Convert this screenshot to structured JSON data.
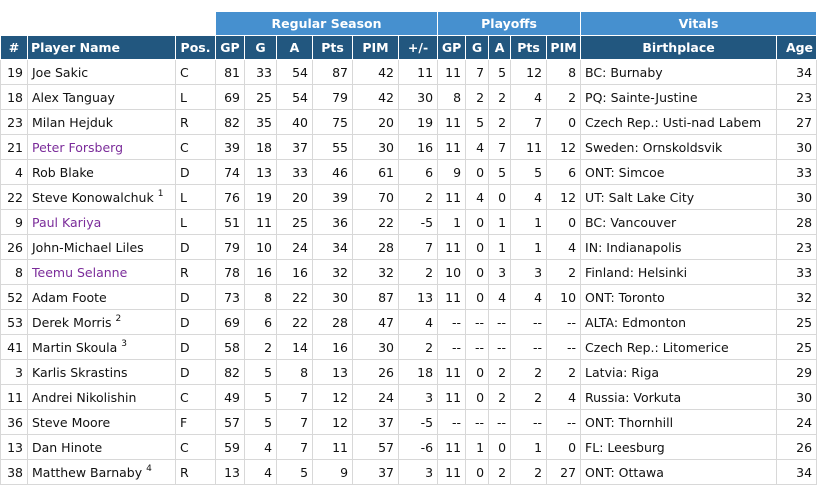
{
  "table": {
    "groups": [
      "Regular Season",
      "Playoffs",
      "Vitals"
    ],
    "columns": [
      "#",
      "Player Name",
      "Pos.",
      "GP",
      "G",
      "A",
      "Pts",
      "PIM",
      "+/-",
      "GP",
      "G",
      "A",
      "Pts",
      "PIM",
      "Birthplace",
      "Age"
    ],
    "link_color": "#7b2c9a",
    "rows": [
      {
        "cells": [
          19,
          "Joe Sakic",
          "C",
          81,
          33,
          54,
          87,
          42,
          11,
          11,
          7,
          5,
          12,
          8,
          "BC: Burnaby",
          34
        ]
      },
      {
        "cells": [
          18,
          "Alex Tanguay",
          "L",
          69,
          25,
          54,
          79,
          42,
          30,
          8,
          2,
          2,
          4,
          2,
          "PQ: Sainte-Justine",
          23
        ]
      },
      {
        "cells": [
          23,
          "Milan Hejduk",
          "R",
          82,
          35,
          40,
          75,
          20,
          19,
          11,
          5,
          2,
          7,
          0,
          "Czech Rep.: Usti-nad Labem",
          27
        ]
      },
      {
        "cells": [
          21,
          "Peter Forsberg",
          "C",
          39,
          18,
          37,
          55,
          30,
          16,
          11,
          4,
          7,
          11,
          12,
          "Sweden: Ornskoldsvik",
          30
        ],
        "link": true
      },
      {
        "cells": [
          4,
          "Rob Blake",
          "D",
          74,
          13,
          33,
          46,
          61,
          6,
          9,
          0,
          5,
          5,
          6,
          "ONT: Simcoe",
          33
        ]
      },
      {
        "cells": [
          22,
          "Steve Konowalchuk",
          "L",
          76,
          19,
          20,
          39,
          70,
          2,
          11,
          4,
          0,
          4,
          12,
          "UT: Salt Lake City",
          30
        ],
        "note": "1"
      },
      {
        "cells": [
          9,
          "Paul Kariya",
          "L",
          51,
          11,
          25,
          36,
          22,
          -5,
          1,
          0,
          1,
          1,
          0,
          "BC: Vancouver",
          28
        ],
        "link": true
      },
      {
        "cells": [
          26,
          "John-Michael Liles",
          "D",
          79,
          10,
          24,
          34,
          28,
          7,
          11,
          0,
          1,
          1,
          4,
          "IN: Indianapolis",
          23
        ]
      },
      {
        "cells": [
          8,
          "Teemu Selanne",
          "R",
          78,
          16,
          16,
          32,
          32,
          2,
          10,
          0,
          3,
          3,
          2,
          "Finland: Helsinki",
          33
        ],
        "link": true
      },
      {
        "cells": [
          52,
          "Adam Foote",
          "D",
          73,
          8,
          22,
          30,
          87,
          13,
          11,
          0,
          4,
          4,
          10,
          "ONT: Toronto",
          32
        ]
      },
      {
        "cells": [
          53,
          "Derek Morris",
          "D",
          69,
          6,
          22,
          28,
          47,
          4,
          "--",
          "--",
          "--",
          "--",
          "--",
          "ALTA: Edmonton",
          25
        ],
        "note": "2"
      },
      {
        "cells": [
          41,
          "Martin Skoula",
          "D",
          58,
          2,
          14,
          16,
          30,
          2,
          "--",
          "--",
          "--",
          "--",
          "--",
          "Czech Rep.: Litomerice",
          25
        ],
        "note": "3"
      },
      {
        "cells": [
          3,
          "Karlis Skrastins",
          "D",
          82,
          5,
          8,
          13,
          26,
          18,
          11,
          0,
          2,
          2,
          2,
          "Latvia: Riga",
          29
        ]
      },
      {
        "cells": [
          11,
          "Andrei Nikolishin",
          "C",
          49,
          5,
          7,
          12,
          24,
          3,
          11,
          0,
          2,
          2,
          4,
          "Russia: Vorkuta",
          30
        ]
      },
      {
        "cells": [
          36,
          "Steve Moore",
          "F",
          57,
          5,
          7,
          12,
          37,
          -5,
          "--",
          "--",
          "--",
          "--",
          "--",
          "ONT: Thornhill",
          24
        ]
      },
      {
        "cells": [
          13,
          "Dan Hinote",
          "C",
          59,
          4,
          7,
          11,
          57,
          -6,
          11,
          1,
          0,
          1,
          0,
          "FL: Leesburg",
          26
        ]
      },
      {
        "cells": [
          38,
          "Matthew Barnaby",
          "R",
          13,
          4,
          5,
          9,
          37,
          3,
          11,
          0,
          2,
          2,
          27,
          "ONT: Ottawa",
          34
        ],
        "note": "4"
      }
    ]
  }
}
